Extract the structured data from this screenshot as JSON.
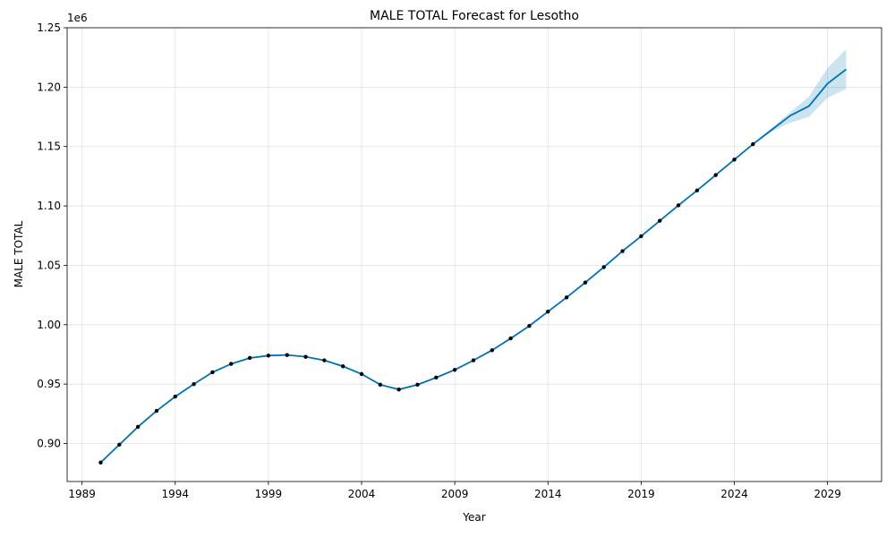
{
  "chart_data": {
    "type": "line",
    "title": "MALE TOTAL Forecast for Lesotho",
    "xlabel": "Year",
    "ylabel": "MALE TOTAL",
    "y_offset_label": "1e6",
    "xlim": [
      1988.2,
      2031.9
    ],
    "ylim": [
      868000,
      1250000
    ],
    "x_ticks": [
      1989,
      1994,
      1999,
      2004,
      2009,
      2014,
      2019,
      2024,
      2029
    ],
    "x_tick_labels": [
      "1989",
      "1994",
      "1999",
      "2004",
      "2009",
      "2014",
      "2019",
      "2024",
      "2029"
    ],
    "y_ticks": [
      900000,
      950000,
      1000000,
      1050000,
      1100000,
      1150000,
      1200000,
      1250000
    ],
    "y_tick_labels": [
      "0.90",
      "0.95",
      "1.00",
      "1.05",
      "1.10",
      "1.15",
      "1.20",
      "1.25"
    ],
    "grid": true,
    "colors": {
      "forecast": "#0072B2",
      "band": "#0072B2",
      "observed": "#000000"
    },
    "observed": {
      "x": [
        1990,
        1991,
        1992,
        1993,
        1994,
        1995,
        1996,
        1997,
        1998,
        1999,
        2000,
        2001,
        2002,
        2003,
        2004,
        2005,
        2006,
        2007,
        2008,
        2009,
        2010,
        2011,
        2012,
        2013,
        2014,
        2015,
        2016,
        2017,
        2018,
        2019,
        2020,
        2021,
        2022,
        2023,
        2024,
        2025
      ],
      "y": [
        884000,
        899000,
        914000,
        927500,
        939500,
        950000,
        960000,
        967000,
        972000,
        974000,
        974500,
        973000,
        970000,
        965000,
        958500,
        949500,
        945500,
        949500,
        955500,
        962000,
        970000,
        978500,
        988500,
        999000,
        1011000,
        1023000,
        1035500,
        1048500,
        1062000,
        1074500,
        1087500,
        1100500,
        1113000,
        1126000,
        1139000,
        1152000
      ]
    },
    "forecast": {
      "x": [
        1990,
        1991,
        1992,
        1993,
        1994,
        1995,
        1996,
        1997,
        1998,
        1999,
        2000,
        2001,
        2002,
        2003,
        2004,
        2005,
        2006,
        2007,
        2008,
        2009,
        2010,
        2011,
        2012,
        2013,
        2014,
        2015,
        2016,
        2017,
        2018,
        2019,
        2020,
        2021,
        2022,
        2023,
        2024,
        2025,
        2026,
        2027,
        2028,
        2029,
        2030
      ],
      "y": [
        884000,
        899000,
        914000,
        927500,
        939500,
        950000,
        960000,
        967000,
        972000,
        974000,
        974500,
        973000,
        970000,
        965000,
        958500,
        949500,
        945500,
        949500,
        955500,
        962000,
        970000,
        978500,
        988500,
        999000,
        1011000,
        1023000,
        1035500,
        1048500,
        1062000,
        1074500,
        1087500,
        1100500,
        1113000,
        1126000,
        1139000,
        1152000,
        1164000,
        1176000,
        1184000,
        1203000,
        1215000
      ],
      "lower": [
        884000,
        899000,
        914000,
        927500,
        939500,
        950000,
        960000,
        967000,
        972000,
        974000,
        974500,
        973000,
        970000,
        965000,
        958500,
        949500,
        945500,
        949500,
        955500,
        962000,
        970000,
        978500,
        988500,
        999000,
        1011000,
        1023000,
        1035500,
        1048500,
        1062000,
        1074500,
        1087500,
        1100500,
        1113000,
        1126000,
        1139000,
        1151500,
        1162500,
        1170000,
        1175000,
        1191000,
        1198500
      ],
      "upper": [
        884000,
        899000,
        914000,
        927500,
        939500,
        950000,
        960000,
        967000,
        972000,
        974000,
        974500,
        973000,
        970000,
        965000,
        958500,
        949500,
        945500,
        949500,
        955500,
        962000,
        970000,
        978500,
        988500,
        999000,
        1011000,
        1023000,
        1035500,
        1048500,
        1062000,
        1074500,
        1087500,
        1100500,
        1113000,
        1126000,
        1139000,
        1152500,
        1165500,
        1179000,
        1192000,
        1216000,
        1232000
      ]
    }
  }
}
